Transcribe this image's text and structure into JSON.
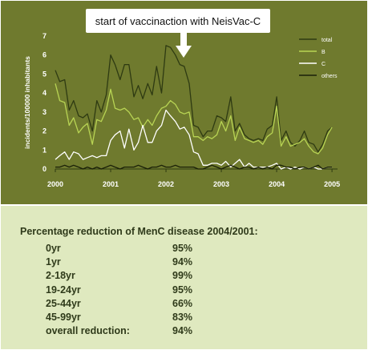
{
  "chart_data": {
    "type": "line",
    "annotation": "start of vaccinaction with NeisVac-C",
    "ylabel": "incidents/100000 inhabitants",
    "ylim": [
      0,
      7
    ],
    "y_ticks": [
      "0",
      "1",
      "2",
      "3",
      "4",
      "5",
      "6",
      "7"
    ],
    "xlim": [
      2000,
      2005.1
    ],
    "x_ticks": [
      {
        "value": 2000,
        "label": "2000"
      },
      {
        "value": 2001,
        "label": "2001"
      },
      {
        "value": 2002,
        "label": "2002"
      },
      {
        "value": 2003,
        "label": "2003"
      },
      {
        "value": 2004,
        "label": "2004"
      },
      {
        "value": 2005,
        "label": "2005"
      }
    ],
    "legend_position": "top-right",
    "series": [
      {
        "name": "total",
        "color": "#2e3a12",
        "points": [
          [
            2000.0,
            5.2
          ],
          [
            2000.08,
            4.6
          ],
          [
            2000.17,
            4.7
          ],
          [
            2000.25,
            3.1
          ],
          [
            2000.33,
            3.6
          ],
          [
            2000.42,
            2.8
          ],
          [
            2000.5,
            2.7
          ],
          [
            2000.58,
            2.9
          ],
          [
            2000.67,
            2.0
          ],
          [
            2000.75,
            3.6
          ],
          [
            2000.83,
            3.0
          ],
          [
            2000.92,
            3.9
          ],
          [
            2001.0,
            6.0
          ],
          [
            2001.08,
            5.5
          ],
          [
            2001.17,
            4.7
          ],
          [
            2001.25,
            5.5
          ],
          [
            2001.33,
            5.5
          ],
          [
            2001.42,
            3.8
          ],
          [
            2001.5,
            4.4
          ],
          [
            2001.58,
            3.7
          ],
          [
            2001.67,
            4.5
          ],
          [
            2001.75,
            3.9
          ],
          [
            2001.83,
            5.4
          ],
          [
            2001.92,
            4.0
          ],
          [
            2002.0,
            6.5
          ],
          [
            2002.08,
            6.4
          ],
          [
            2002.17,
            6.0
          ],
          [
            2002.25,
            5.5
          ],
          [
            2002.33,
            5.4
          ],
          [
            2002.42,
            4.5
          ],
          [
            2002.5,
            2.3
          ],
          [
            2002.58,
            2.2
          ],
          [
            2002.67,
            1.7
          ],
          [
            2002.75,
            2.0
          ],
          [
            2002.83,
            2.0
          ],
          [
            2002.92,
            2.8
          ],
          [
            2003.0,
            2.7
          ],
          [
            2003.08,
            2.5
          ],
          [
            2003.17,
            3.8
          ],
          [
            2003.25,
            2.0
          ],
          [
            2003.33,
            2.4
          ],
          [
            2003.42,
            1.8
          ],
          [
            2003.5,
            1.6
          ],
          [
            2003.58,
            1.5
          ],
          [
            2003.67,
            1.6
          ],
          [
            2003.75,
            1.5
          ],
          [
            2003.83,
            2.1
          ],
          [
            2003.92,
            2.3
          ],
          [
            2004.0,
            3.8
          ],
          [
            2004.08,
            1.5
          ],
          [
            2004.17,
            2.0
          ],
          [
            2004.25,
            1.4
          ],
          [
            2004.33,
            1.2
          ],
          [
            2004.42,
            1.5
          ],
          [
            2004.5,
            2.0
          ],
          [
            2004.58,
            1.4
          ],
          [
            2004.67,
            1.3
          ],
          [
            2004.75,
            0.9
          ],
          [
            2004.83,
            1.3
          ],
          [
            2004.92,
            2.0
          ],
          [
            2005.0,
            2.2
          ]
        ]
      },
      {
        "name": "B",
        "color": "#b8d454",
        "points": [
          [
            2000.0,
            4.5
          ],
          [
            2000.08,
            3.6
          ],
          [
            2000.17,
            3.5
          ],
          [
            2000.25,
            2.3
          ],
          [
            2000.33,
            2.7
          ],
          [
            2000.42,
            1.9
          ],
          [
            2000.5,
            2.2
          ],
          [
            2000.58,
            2.4
          ],
          [
            2000.67,
            1.3
          ],
          [
            2000.75,
            2.6
          ],
          [
            2000.83,
            2.5
          ],
          [
            2000.92,
            3.1
          ],
          [
            2001.0,
            4.2
          ],
          [
            2001.08,
            3.2
          ],
          [
            2001.17,
            3.1
          ],
          [
            2001.25,
            3.2
          ],
          [
            2001.33,
            3.0
          ],
          [
            2001.42,
            2.6
          ],
          [
            2001.5,
            2.7
          ],
          [
            2001.58,
            2.2
          ],
          [
            2001.67,
            2.6
          ],
          [
            2001.75,
            2.3
          ],
          [
            2001.83,
            2.8
          ],
          [
            2001.92,
            3.2
          ],
          [
            2002.0,
            3.3
          ],
          [
            2002.08,
            3.6
          ],
          [
            2002.17,
            3.4
          ],
          [
            2002.25,
            3.0
          ],
          [
            2002.33,
            2.9
          ],
          [
            2002.42,
            3.0
          ],
          [
            2002.5,
            1.7
          ],
          [
            2002.58,
            1.7
          ],
          [
            2002.67,
            1.5
          ],
          [
            2002.75,
            1.7
          ],
          [
            2002.83,
            1.6
          ],
          [
            2002.92,
            1.8
          ],
          [
            2003.0,
            2.5
          ],
          [
            2003.08,
            2.0
          ],
          [
            2003.17,
            2.8
          ],
          [
            2003.25,
            1.5
          ],
          [
            2003.33,
            2.2
          ],
          [
            2003.42,
            1.6
          ],
          [
            2003.5,
            1.5
          ],
          [
            2003.58,
            1.4
          ],
          [
            2003.67,
            1.5
          ],
          [
            2003.75,
            1.3
          ],
          [
            2003.83,
            1.7
          ],
          [
            2003.92,
            1.9
          ],
          [
            2004.0,
            3.3
          ],
          [
            2004.08,
            1.2
          ],
          [
            2004.17,
            1.7
          ],
          [
            2004.25,
            1.2
          ],
          [
            2004.33,
            1.3
          ],
          [
            2004.42,
            1.4
          ],
          [
            2004.5,
            1.6
          ],
          [
            2004.58,
            1.2
          ],
          [
            2004.67,
            0.9
          ],
          [
            2004.75,
            0.8
          ],
          [
            2004.83,
            1.1
          ],
          [
            2004.92,
            1.8
          ],
          [
            2005.0,
            2.2
          ]
        ]
      },
      {
        "name": "C",
        "color": "#ffffff",
        "points": [
          [
            2000.0,
            0.5
          ],
          [
            2000.08,
            0.7
          ],
          [
            2000.17,
            0.9
          ],
          [
            2000.25,
            0.5
          ],
          [
            2000.33,
            0.9
          ],
          [
            2000.42,
            0.8
          ],
          [
            2000.5,
            0.5
          ],
          [
            2000.58,
            0.6
          ],
          [
            2000.67,
            0.7
          ],
          [
            2000.75,
            0.6
          ],
          [
            2000.83,
            0.7
          ],
          [
            2000.92,
            0.7
          ],
          [
            2001.0,
            1.5
          ],
          [
            2001.08,
            1.8
          ],
          [
            2001.17,
            2.0
          ],
          [
            2001.25,
            1.1
          ],
          [
            2001.33,
            2.1
          ],
          [
            2001.42,
            1.0
          ],
          [
            2001.5,
            1.4
          ],
          [
            2001.58,
            2.3
          ],
          [
            2001.67,
            1.4
          ],
          [
            2001.75,
            1.4
          ],
          [
            2001.83,
            2.0
          ],
          [
            2001.92,
            2.3
          ],
          [
            2002.0,
            3.1
          ],
          [
            2002.08,
            2.8
          ],
          [
            2002.17,
            2.5
          ],
          [
            2002.25,
            2.1
          ],
          [
            2002.33,
            2.2
          ],
          [
            2002.42,
            1.8
          ],
          [
            2002.5,
            0.9
          ],
          [
            2002.58,
            0.8
          ],
          [
            2002.67,
            0.2
          ],
          [
            2002.75,
            0.2
          ],
          [
            2002.83,
            0.3
          ],
          [
            2002.92,
            0.3
          ],
          [
            2003.0,
            0.2
          ],
          [
            2003.08,
            0.4
          ],
          [
            2003.17,
            0.1
          ],
          [
            2003.25,
            0.3
          ],
          [
            2003.33,
            0.5
          ],
          [
            2003.42,
            0.1
          ],
          [
            2003.5,
            0.3
          ],
          [
            2003.58,
            0.1
          ],
          [
            2003.67,
            0.1
          ],
          [
            2003.75,
            0.1
          ],
          [
            2003.83,
            0.1
          ],
          [
            2003.92,
            0.2
          ],
          [
            2004.0,
            0.3
          ],
          [
            2004.08,
            0.0
          ],
          [
            2004.17,
            0.1
          ],
          [
            2004.25,
            0.0
          ],
          [
            2004.33,
            0.1
          ],
          [
            2004.42,
            0.0
          ],
          [
            2004.5,
            0.1
          ],
          [
            2004.58,
            0.0
          ],
          [
            2004.67,
            0.1
          ],
          [
            2004.75,
            0.0
          ],
          [
            2004.83,
            0.0
          ],
          [
            2004.92,
            0.1
          ],
          [
            2005.0,
            0.1
          ]
        ]
      },
      {
        "name": "others",
        "color": "#1a2008",
        "points": [
          [
            2000.0,
            0.1
          ],
          [
            2000.08,
            0.1
          ],
          [
            2000.17,
            0.2
          ],
          [
            2000.25,
            0.1
          ],
          [
            2000.33,
            0.2
          ],
          [
            2000.42,
            0.1
          ],
          [
            2000.5,
            0.0
          ],
          [
            2000.58,
            0.1
          ],
          [
            2000.67,
            0.0
          ],
          [
            2000.75,
            0.1
          ],
          [
            2000.83,
            0.0
          ],
          [
            2000.92,
            0.1
          ],
          [
            2001.0,
            0.2
          ],
          [
            2001.08,
            0.1
          ],
          [
            2001.17,
            0.0
          ],
          [
            2001.25,
            0.1
          ],
          [
            2001.33,
            0.1
          ],
          [
            2001.42,
            0.1
          ],
          [
            2001.5,
            0.2
          ],
          [
            2001.58,
            0.1
          ],
          [
            2001.67,
            0.0
          ],
          [
            2001.75,
            0.1
          ],
          [
            2001.83,
            0.1
          ],
          [
            2001.92,
            0.2
          ],
          [
            2002.0,
            0.1
          ],
          [
            2002.08,
            0.1
          ],
          [
            2002.17,
            0.2
          ],
          [
            2002.25,
            0.1
          ],
          [
            2002.33,
            0.1
          ],
          [
            2002.42,
            0.1
          ],
          [
            2002.5,
            0.1
          ],
          [
            2002.58,
            0.0
          ],
          [
            2002.67,
            0.0
          ],
          [
            2002.75,
            0.1
          ],
          [
            2002.83,
            0.2
          ],
          [
            2002.92,
            0.1
          ],
          [
            2003.0,
            0.0
          ],
          [
            2003.08,
            0.1
          ],
          [
            2003.17,
            0.2
          ],
          [
            2003.25,
            0.1
          ],
          [
            2003.33,
            0.0
          ],
          [
            2003.42,
            0.1
          ],
          [
            2003.5,
            0.1
          ],
          [
            2003.58,
            0.0
          ],
          [
            2003.67,
            0.1
          ],
          [
            2003.75,
            0.0
          ],
          [
            2003.83,
            0.1
          ],
          [
            2003.92,
            0.0
          ],
          [
            2004.0,
            0.2
          ],
          [
            2004.08,
            0.2
          ],
          [
            2004.17,
            0.1
          ],
          [
            2004.25,
            0.1
          ],
          [
            2004.33,
            0.0
          ],
          [
            2004.42,
            0.1
          ],
          [
            2004.5,
            0.1
          ],
          [
            2004.58,
            0.0
          ],
          [
            2004.67,
            0.1
          ],
          [
            2004.75,
            0.2
          ],
          [
            2004.83,
            0.0
          ],
          [
            2004.92,
            0.1
          ],
          [
            2005.0,
            0.1
          ]
        ]
      }
    ]
  },
  "table": {
    "title": "Percentage reduction of MenC disease 2004/2001:",
    "rows": [
      {
        "label": "0yr",
        "value": "95%"
      },
      {
        "label": "1yr",
        "value": "94%"
      },
      {
        "label": "2-18yr",
        "value": "99%"
      },
      {
        "label": "19-24yr",
        "value": "95%"
      },
      {
        "label": "25-44yr",
        "value": "66%"
      },
      {
        "label": "45-99yr",
        "value": "83%"
      },
      {
        "label": "overall reduction:",
        "value": "94%"
      }
    ]
  },
  "colors": {
    "chart_bg": "#6f7a2e",
    "table_bg": "#dfe9bf",
    "text_dark": "#2f3a1a"
  }
}
